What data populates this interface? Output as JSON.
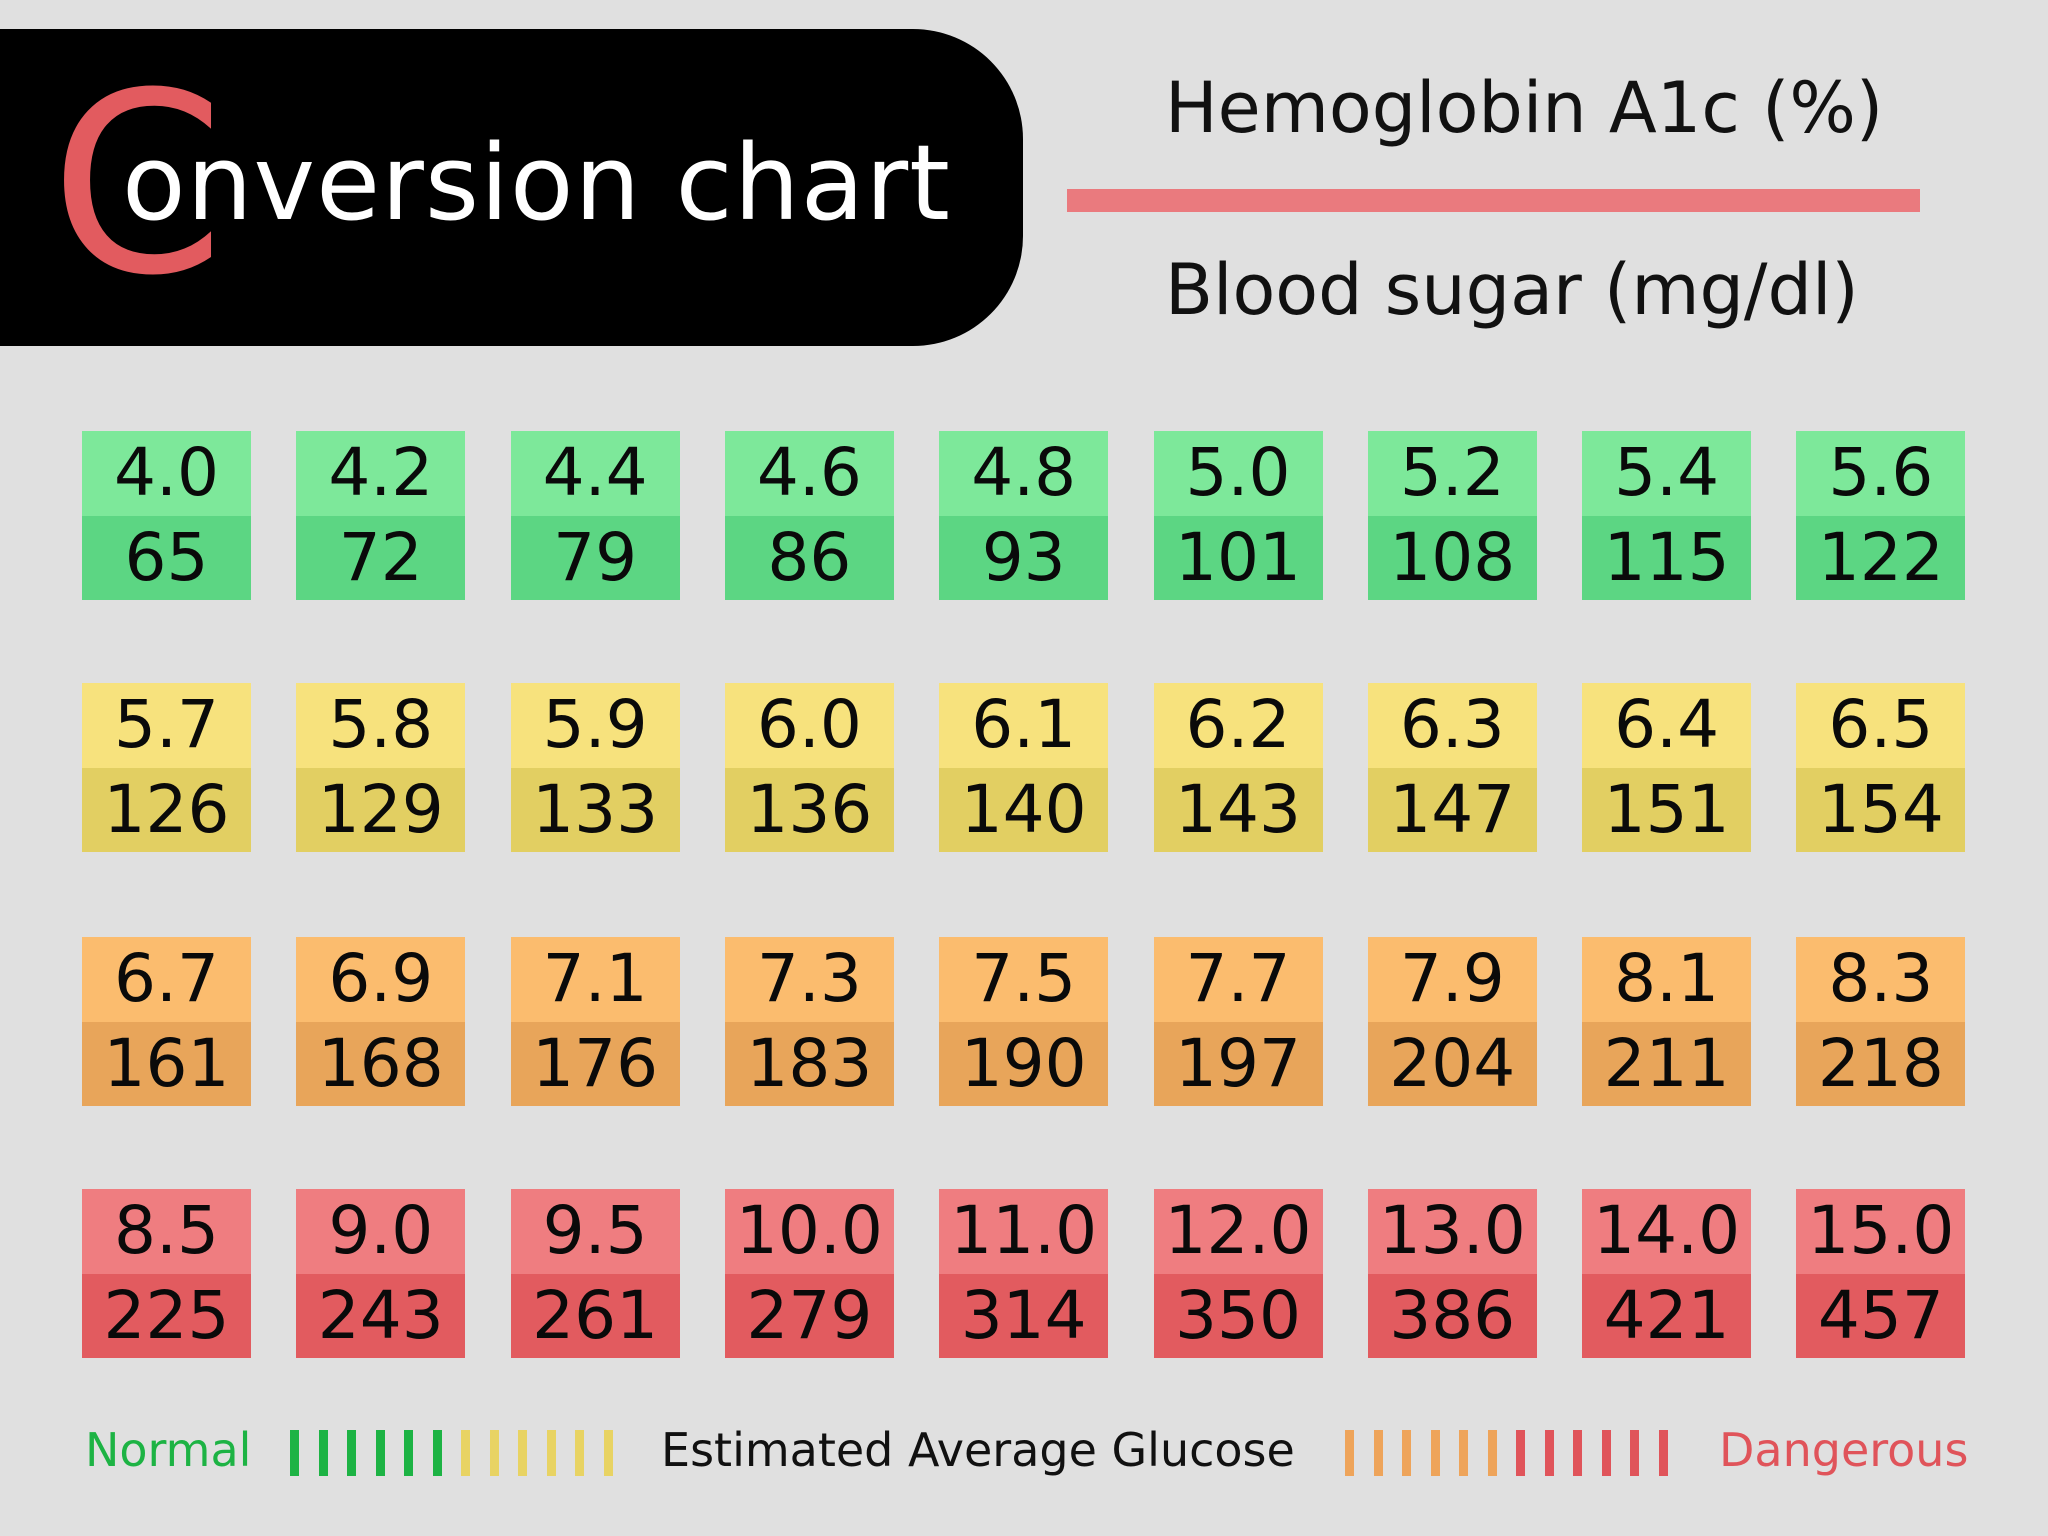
{
  "header": {
    "title_initial": "C",
    "title_rest": "onversion chart",
    "fraction_top": "Hemoglobin A1c (%)",
    "fraction_bottom": "Blood sugar (mg/dl)"
  },
  "colors": {
    "background": "#e0e0e0",
    "accent_red": "#e25b5f",
    "normal": {
      "top": "#7de89a",
      "bottom": "#5cd683"
    },
    "elevated": {
      "top": "#f7e27d",
      "bottom": "#e2cf62"
    },
    "high": {
      "top": "#fbbc6e",
      "bottom": "#e8a55a"
    },
    "dangerous": {
      "top": "#ef7d80",
      "bottom": "#e25b5f"
    }
  },
  "rows": [
    {
      "level": "normal",
      "cells": [
        {
          "a1c": "4.0",
          "sugar": "65"
        },
        {
          "a1c": "4.2",
          "sugar": "72"
        },
        {
          "a1c": "4.4",
          "sugar": "79"
        },
        {
          "a1c": "4.6",
          "sugar": "86"
        },
        {
          "a1c": "4.8",
          "sugar": "93"
        },
        {
          "a1c": "5.0",
          "sugar": "101"
        },
        {
          "a1c": "5.2",
          "sugar": "108"
        },
        {
          "a1c": "5.4",
          "sugar": "115"
        },
        {
          "a1c": "5.6",
          "sugar": "122"
        }
      ]
    },
    {
      "level": "elevated",
      "cells": [
        {
          "a1c": "5.7",
          "sugar": "126"
        },
        {
          "a1c": "5.8",
          "sugar": "129"
        },
        {
          "a1c": "5.9",
          "sugar": "133"
        },
        {
          "a1c": "6.0",
          "sugar": "136"
        },
        {
          "a1c": "6.1",
          "sugar": "140"
        },
        {
          "a1c": "6.2",
          "sugar": "143"
        },
        {
          "a1c": "6.3",
          "sugar": "147"
        },
        {
          "a1c": "6.4",
          "sugar": "151"
        },
        {
          "a1c": "6.5",
          "sugar": "154"
        }
      ]
    },
    {
      "level": "high",
      "cells": [
        {
          "a1c": "6.7",
          "sugar": "161"
        },
        {
          "a1c": "6.9",
          "sugar": "168"
        },
        {
          "a1c": "7.1",
          "sugar": "176"
        },
        {
          "a1c": "7.3",
          "sugar": "183"
        },
        {
          "a1c": "7.5",
          "sugar": "190"
        },
        {
          "a1c": "7.7",
          "sugar": "197"
        },
        {
          "a1c": "7.9",
          "sugar": "204"
        },
        {
          "a1c": "8.1",
          "sugar": "211"
        },
        {
          "a1c": "8.3",
          "sugar": "218"
        }
      ]
    },
    {
      "level": "dangerous",
      "cells": [
        {
          "a1c": "8.5",
          "sugar": "225"
        },
        {
          "a1c": "9.0",
          "sugar": "243"
        },
        {
          "a1c": "9.5",
          "sugar": "261"
        },
        {
          "a1c": "10.0",
          "sugar": "279"
        },
        {
          "a1c": "11.0",
          "sugar": "314"
        },
        {
          "a1c": "12.0",
          "sugar": "350"
        },
        {
          "a1c": "13.0",
          "sugar": "386"
        },
        {
          "a1c": "14.0",
          "sugar": "421"
        },
        {
          "a1c": "15.0",
          "sugar": "457"
        }
      ]
    }
  ],
  "legend": {
    "normal_label": "Normal",
    "center_label": "Estimated Average Glucose",
    "dangerous_label": "Dangerous",
    "normal_color": "#1db344",
    "dangerous_color": "#e0545a",
    "left_bars": [
      "#1db344",
      "#1db344",
      "#1db344",
      "#1db344",
      "#1db344",
      "#1db344",
      "#e8d363",
      "#e8d363",
      "#e8d363",
      "#e8d363",
      "#e8d363",
      "#e8d363"
    ],
    "right_bars": [
      "#eea45a",
      "#eea45a",
      "#eea45a",
      "#eea45a",
      "#eea45a",
      "#eea45a",
      "#e0545a",
      "#e0545a",
      "#e0545a",
      "#e0545a",
      "#e0545a",
      "#e0545a"
    ]
  }
}
